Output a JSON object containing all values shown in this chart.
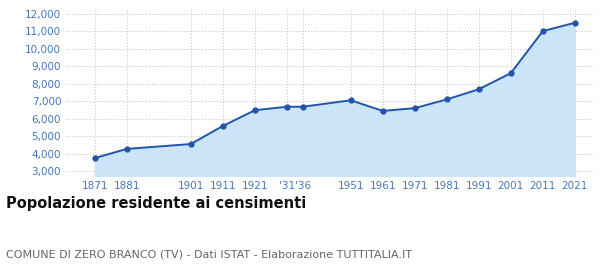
{
  "years": [
    1871,
    1881,
    1901,
    1911,
    1921,
    1931,
    1936,
    1951,
    1961,
    1971,
    1981,
    1991,
    2001,
    2011,
    2021
  ],
  "population": [
    3750,
    4270,
    4550,
    5580,
    6480,
    6680,
    6680,
    7050,
    6440,
    6600,
    7100,
    7680,
    8600,
    11000,
    11480
  ],
  "x_tick_labels": [
    "1871",
    "1881",
    "1901",
    "1911",
    "1921",
    "'31",
    "'36",
    "1951",
    "1961",
    "1971",
    "1981",
    "1991",
    "2001",
    "2011",
    "2021"
  ],
  "y_ticks": [
    3000,
    4000,
    5000,
    6000,
    7000,
    8000,
    9000,
    10000,
    11000,
    12000
  ],
  "ylim": [
    2700,
    12300
  ],
  "xlim": [
    1862,
    2027
  ],
  "line_color": "#2255aa",
  "fill_color": "#cce4f7",
  "marker_color": "#2255aa",
  "grid_color": "#c8c8c8",
  "tick_label_color": "#4477bb",
  "title": "Popolazione residente ai censimenti",
  "subtitle": "COMUNE DI ZERO BRANCO (TV) - Dati ISTAT - Elaborazione TUTTITALIA.IT",
  "title_fontsize": 10.5,
  "subtitle_fontsize": 8,
  "background_color": "#ffffff"
}
